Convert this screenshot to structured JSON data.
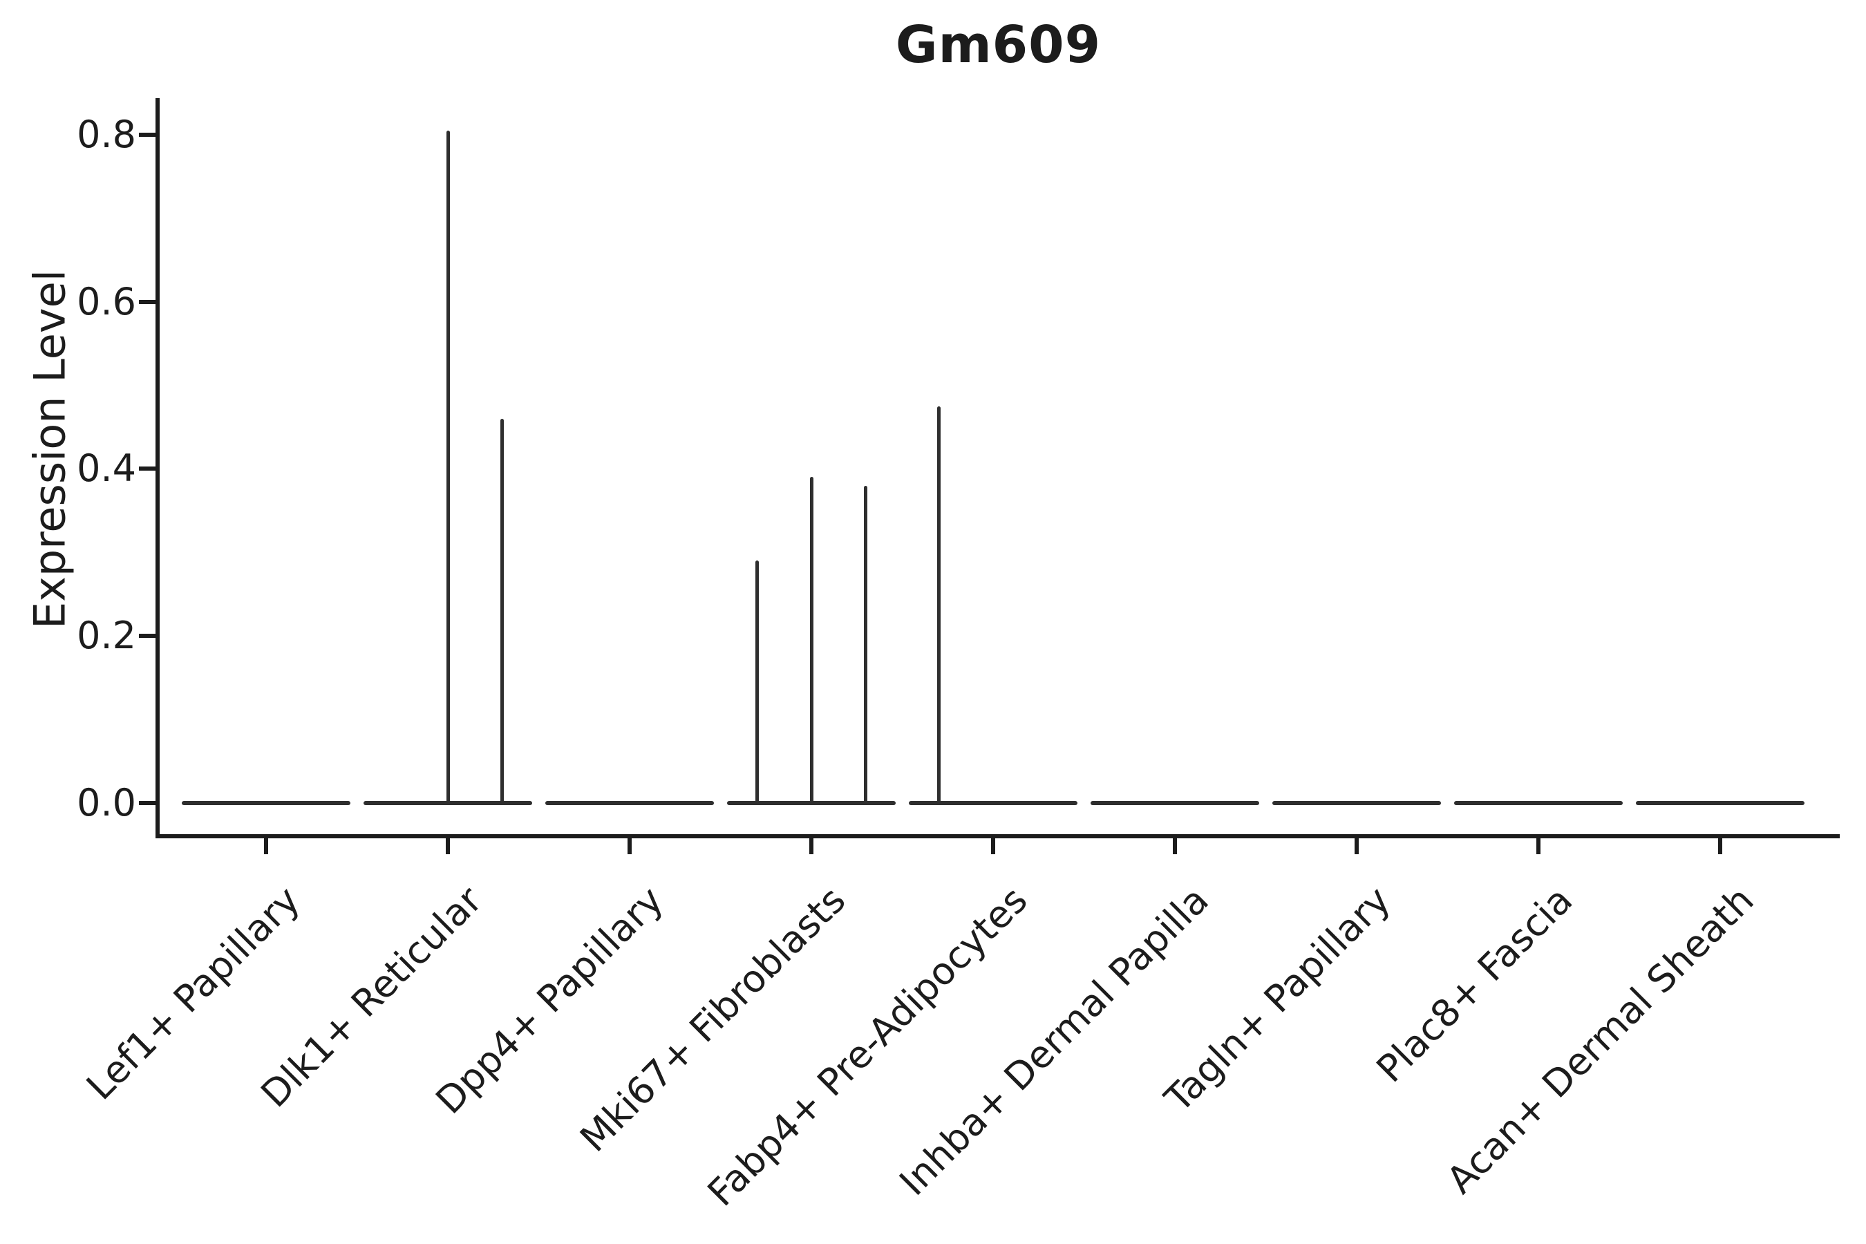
{
  "figure": {
    "title": "Gm609",
    "ylabel": "Expression Level"
  },
  "colors": {
    "background": "#ffffff",
    "axis": "#1c1c1c",
    "text": "#1c1c1c",
    "violin_stroke": "#2e2e2e"
  },
  "chart_data": {
    "type": "violin",
    "title": "Gm609",
    "xlabel": "",
    "ylabel": "Expression Level",
    "ylim": [
      -0.02,
      0.84
    ],
    "yticks": [
      0.0,
      0.2,
      0.4,
      0.6,
      0.8
    ],
    "ytick_labels": [
      "0.0",
      "0.2",
      "0.4",
      "0.6",
      "0.8"
    ],
    "grid": false,
    "legend": null,
    "categories": [
      "Lef1+ Papillary",
      "Dlk1+ Reticular",
      "Dpp4+ Papillary",
      "Mki67+ Fibroblasts",
      "Fabp4+ Pre-Adipocytes",
      "Inhba+ Dermal Papilla",
      "Tagln+ Papillary",
      "Plac8+ Fascia",
      "Acan+ Dermal Sheath"
    ],
    "series": [
      {
        "name": "Lef1+ Papillary",
        "baseline_value": 0.0,
        "spikes": []
      },
      {
        "name": "Dlk1+ Reticular",
        "baseline_value": 0.0,
        "spikes": [
          {
            "x_offset": 0.0,
            "value": 0.805
          },
          {
            "x_offset": 0.3,
            "value": 0.46
          }
        ]
      },
      {
        "name": "Dpp4+ Papillary",
        "baseline_value": 0.0,
        "spikes": []
      },
      {
        "name": "Mki67+ Fibroblasts",
        "baseline_value": 0.0,
        "spikes": [
          {
            "x_offset": -0.3,
            "value": 0.29
          },
          {
            "x_offset": 0.0,
            "value": 0.39
          },
          {
            "x_offset": 0.3,
            "value": 0.38
          }
        ]
      },
      {
        "name": "Fabp4+ Pre-Adipocytes",
        "baseline_value": 0.0,
        "spikes": [
          {
            "x_offset": -0.3,
            "value": 0.475
          }
        ]
      },
      {
        "name": "Inhba+ Dermal Papilla",
        "baseline_value": 0.0,
        "spikes": []
      },
      {
        "name": "Tagln+ Papillary",
        "baseline_value": 0.0,
        "spikes": []
      },
      {
        "name": "Plac8+ Fascia",
        "baseline_value": 0.0,
        "spikes": []
      },
      {
        "name": "Acan+ Dermal Sheath",
        "baseline_value": 0.0,
        "spikes": []
      }
    ],
    "notes": "Each violin collapses to a flat line at expression 0; thin vertical spikes mark the few cells with non-zero expression."
  }
}
